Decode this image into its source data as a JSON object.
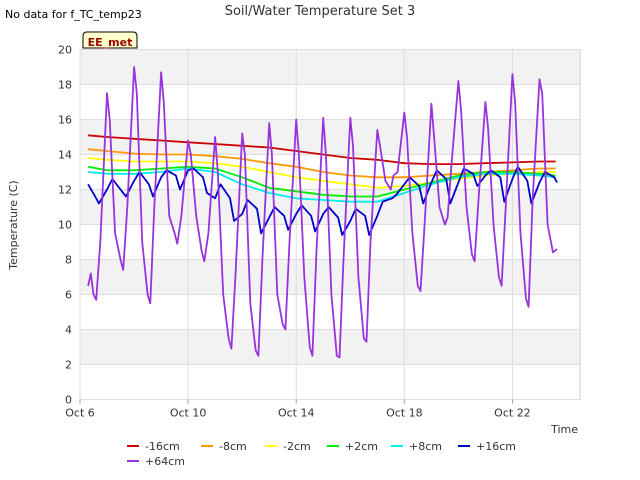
{
  "no_data_note": "No data for f_TC_temp23",
  "chart_data": {
    "type": "line",
    "title": "Soil/Water Temperature Set 3",
    "xlabel": "Time",
    "ylabel": "Temperature (C)",
    "ylim": [
      0,
      20
    ],
    "yticks": [
      "0",
      "2",
      "4",
      "6",
      "8",
      "10",
      "12",
      "14",
      "16",
      "18",
      "20"
    ],
    "xlim_days": [
      0,
      18.5
    ],
    "xticks": [
      {
        "day": 0,
        "label": "Oct 6"
      },
      {
        "day": 4,
        "label": "Oct 10"
      },
      {
        "day": 8,
        "label": "Oct 14"
      },
      {
        "day": 12,
        "label": "Oct 18"
      },
      {
        "day": 16,
        "label": "Oct 22"
      }
    ],
    "grid": true,
    "legend_position": "bottom",
    "station_badge": "EE_met",
    "series": [
      {
        "name": "-16cm",
        "color": "#cc0000",
        "x": [
          0.3,
          1,
          2,
          3,
          4,
          5,
          6,
          7,
          8,
          9,
          10,
          11,
          12,
          13,
          14,
          15,
          16,
          17,
          17.6
        ],
        "values": [
          15.1,
          15.0,
          14.9,
          14.8,
          14.7,
          14.6,
          14.5,
          14.4,
          14.2,
          14.0,
          13.8,
          13.7,
          13.5,
          13.45,
          13.45,
          13.5,
          13.55,
          13.6,
          13.6
        ]
      },
      {
        "name": "-8cm",
        "color": "#ff9900",
        "x": [
          0.3,
          1,
          2,
          3,
          4,
          5,
          6,
          7,
          8,
          9,
          10,
          11,
          12,
          13,
          14,
          15,
          16,
          17,
          17.6
        ],
        "values": [
          14.3,
          14.2,
          14.05,
          14.0,
          14.0,
          13.9,
          13.75,
          13.5,
          13.3,
          13.0,
          12.8,
          12.7,
          12.7,
          12.8,
          12.9,
          13.0,
          13.1,
          13.2,
          13.2
        ]
      },
      {
        "name": "-2cm",
        "color": "#ffff00",
        "x": [
          0.3,
          1,
          2,
          3,
          4,
          5,
          6,
          7,
          8,
          9,
          10,
          11,
          12,
          13,
          14,
          15,
          16,
          17,
          17.6
        ],
        "values": [
          13.8,
          13.7,
          13.6,
          13.6,
          13.6,
          13.5,
          13.3,
          13.0,
          12.7,
          12.5,
          12.3,
          12.1,
          12.2,
          12.4,
          12.6,
          12.8,
          12.9,
          13.0,
          13.0
        ]
      },
      {
        "name": "+2cm",
        "color": "#00ee00",
        "x": [
          0.3,
          1,
          2,
          3,
          4,
          5,
          6,
          7,
          8,
          9,
          10,
          11,
          12,
          13,
          14,
          15,
          16,
          17,
          17.6
        ],
        "values": [
          13.3,
          13.1,
          13.1,
          13.2,
          13.3,
          13.2,
          12.7,
          12.1,
          11.9,
          11.7,
          11.6,
          11.6,
          12.0,
          12.4,
          12.8,
          13.0,
          13.0,
          12.9,
          12.8
        ]
      },
      {
        "name": "+8cm",
        "color": "#00eeee",
        "x": [
          0.3,
          1,
          2,
          3,
          4,
          5,
          6,
          7,
          8,
          9,
          10,
          11,
          12,
          13,
          14,
          15,
          16,
          17,
          17.6
        ],
        "values": [
          13.0,
          12.9,
          12.9,
          13.0,
          13.2,
          13.0,
          12.3,
          11.8,
          11.5,
          11.4,
          11.3,
          11.3,
          11.8,
          12.3,
          12.7,
          12.9,
          12.9,
          12.8,
          12.7
        ]
      },
      {
        "name": "+16cm",
        "color": "#0000cc",
        "x": [
          0.3,
          0.6,
          0.7,
          1.0,
          1.2,
          1.55,
          1.7,
          2.0,
          2.2,
          2.55,
          2.7,
          3.0,
          3.2,
          3.55,
          3.7,
          4.0,
          4.2,
          4.55,
          4.7,
          5.0,
          5.2,
          5.55,
          5.7,
          6.0,
          6.2,
          6.55,
          6.7,
          7.0,
          7.2,
          7.55,
          7.7,
          8.0,
          8.2,
          8.55,
          8.7,
          9.0,
          9.2,
          9.55,
          9.7,
          10.0,
          10.2,
          10.55,
          10.7,
          11.0,
          11.2,
          11.55,
          11.7,
          12.0,
          12.2,
          12.55,
          12.7,
          13.0,
          13.2,
          13.55,
          13.7,
          14.0,
          14.2,
          14.55,
          14.7,
          15.0,
          15.2,
          15.55,
          15.7,
          16.0,
          16.2,
          16.55,
          16.7,
          17.0,
          17.2,
          17.55,
          17.65
        ],
        "values": [
          12.3,
          11.5,
          11.2,
          12.0,
          12.6,
          11.9,
          11.6,
          12.5,
          13.0,
          12.3,
          11.6,
          12.7,
          13.1,
          12.8,
          12.0,
          13.1,
          13.2,
          12.7,
          11.8,
          11.5,
          12.3,
          11.5,
          10.2,
          10.6,
          11.4,
          10.9,
          9.5,
          10.4,
          11.0,
          10.5,
          9.7,
          10.6,
          11.1,
          10.5,
          9.6,
          10.6,
          11.0,
          10.4,
          9.4,
          10.2,
          10.9,
          10.5,
          9.4,
          10.5,
          11.3,
          11.5,
          11.7,
          12.3,
          12.7,
          12.2,
          11.2,
          12.4,
          13.1,
          12.6,
          11.2,
          12.4,
          13.2,
          12.9,
          12.2,
          12.8,
          13.1,
          12.7,
          11.3,
          12.6,
          13.3,
          12.5,
          11.2,
          12.4,
          13.0,
          12.7,
          12.4
        ]
      },
      {
        "name": "+64cm",
        "color": "#9933dd",
        "x": [
          0.3,
          0.4,
          0.5,
          0.6,
          0.75,
          1.0,
          1.1,
          1.3,
          1.5,
          1.6,
          1.75,
          2.0,
          2.1,
          2.3,
          2.5,
          2.6,
          2.75,
          3.0,
          3.1,
          3.3,
          3.5,
          3.6,
          3.75,
          4.0,
          4.1,
          4.3,
          4.5,
          4.6,
          4.75,
          5.0,
          5.1,
          5.3,
          5.5,
          5.6,
          5.75,
          6.0,
          6.1,
          6.3,
          6.5,
          6.6,
          6.75,
          7.0,
          7.1,
          7.3,
          7.5,
          7.6,
          7.75,
          8.0,
          8.1,
          8.3,
          8.5,
          8.6,
          8.75,
          9.0,
          9.1,
          9.3,
          9.5,
          9.6,
          9.75,
          10.0,
          10.1,
          10.3,
          10.5,
          10.6,
          10.75,
          11.0,
          11.1,
          11.3,
          11.5,
          11.6,
          11.75,
          12.0,
          12.1,
          12.3,
          12.5,
          12.6,
          12.75,
          13.0,
          13.1,
          13.3,
          13.5,
          13.6,
          13.75,
          14.0,
          14.1,
          14.3,
          14.5,
          14.6,
          14.75,
          15.0,
          15.1,
          15.3,
          15.5,
          15.6,
          15.75,
          16.0,
          16.1,
          16.3,
          16.5,
          16.6,
          16.75,
          17.0,
          17.1,
          17.3,
          17.5,
          17.65
        ],
        "values": [
          6.5,
          7.2,
          6.0,
          5.7,
          9.0,
          17.5,
          16.0,
          9.5,
          8.0,
          7.4,
          11.0,
          19.0,
          17.5,
          9.0,
          6.0,
          5.5,
          11.0,
          18.7,
          17.0,
          10.5,
          9.5,
          8.9,
          10.5,
          14.8,
          14.0,
          10.5,
          8.5,
          7.9,
          9.5,
          15.0,
          13.0,
          6.0,
          3.5,
          2.9,
          7.0,
          15.2,
          14.0,
          5.5,
          2.8,
          2.5,
          8.0,
          15.8,
          14.0,
          6.0,
          4.3,
          4.0,
          9.0,
          16.0,
          14.0,
          7.0,
          3.0,
          2.5,
          8.5,
          16.1,
          14.0,
          6.0,
          2.5,
          2.4,
          8.0,
          16.1,
          14.5,
          7.0,
          3.5,
          3.3,
          9.0,
          15.4,
          14.5,
          12.5,
          12.0,
          12.8,
          13.0,
          16.4,
          15.0,
          9.5,
          6.5,
          6.2,
          10.0,
          16.9,
          15.0,
          11.0,
          10.0,
          10.4,
          13.5,
          18.2,
          16.5,
          11.0,
          8.3,
          7.9,
          11.5,
          17.0,
          15.5,
          10.0,
          7.0,
          6.5,
          11.0,
          18.6,
          17.0,
          9.5,
          5.8,
          5.3,
          11.5,
          18.3,
          17.5,
          10.0,
          8.4,
          8.6
        ]
      }
    ]
  }
}
